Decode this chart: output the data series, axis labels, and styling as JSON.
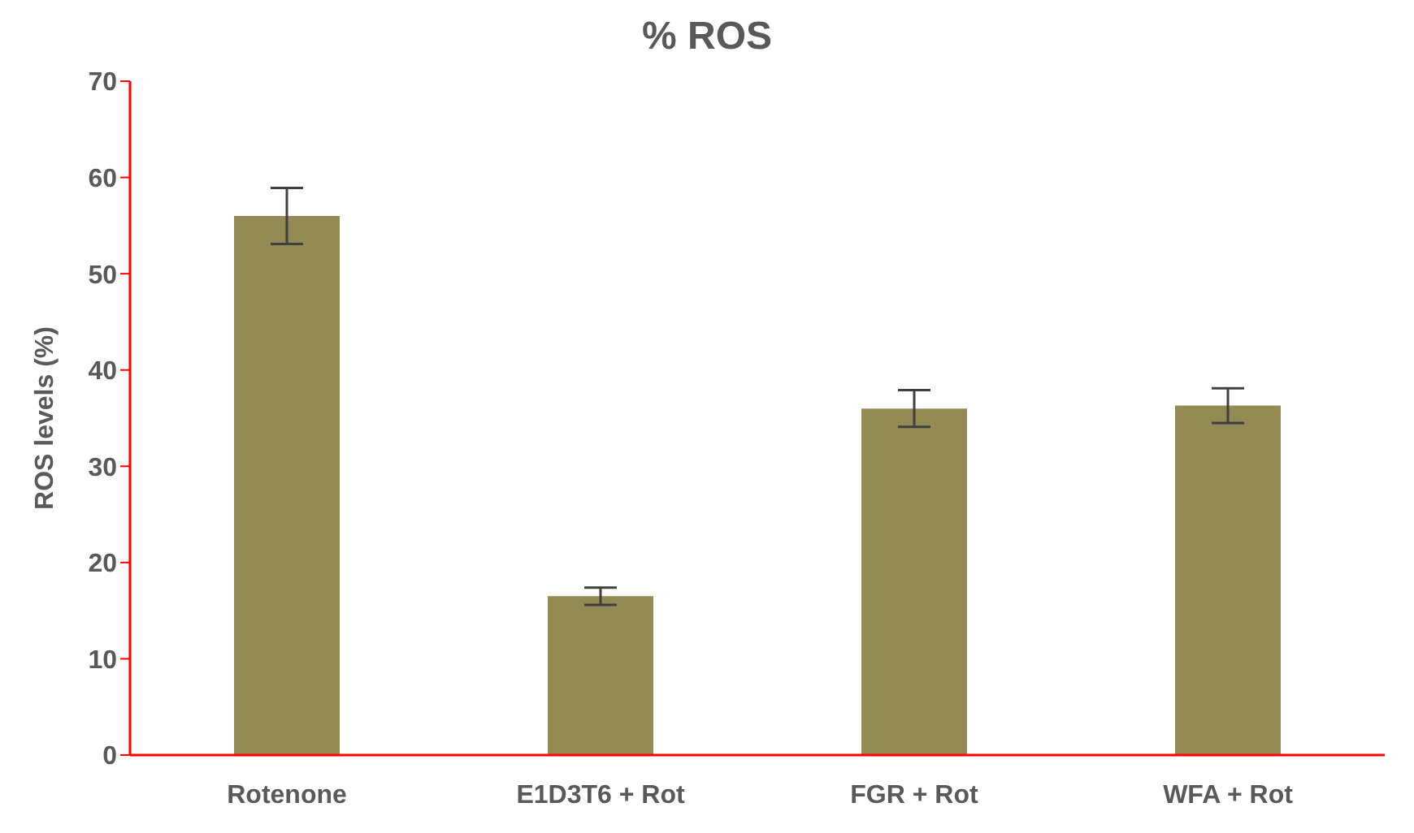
{
  "chart_data": {
    "type": "bar",
    "title": "% ROS",
    "ylabel": "ROS levels (%)",
    "categories": [
      "Rotenone",
      "E1D3T6 + Rot",
      "FGR + Rot",
      "WFA + Rot"
    ],
    "values": [
      56,
      16.5,
      36,
      36.3
    ],
    "errors": [
      2.9,
      0.9,
      1.9,
      1.8
    ],
    "color": "#948a54",
    "ylim": [
      0,
      70
    ],
    "yticks": [
      0,
      10,
      20,
      30,
      40,
      50,
      60,
      70
    ],
    "grid": false,
    "legend": false
  }
}
